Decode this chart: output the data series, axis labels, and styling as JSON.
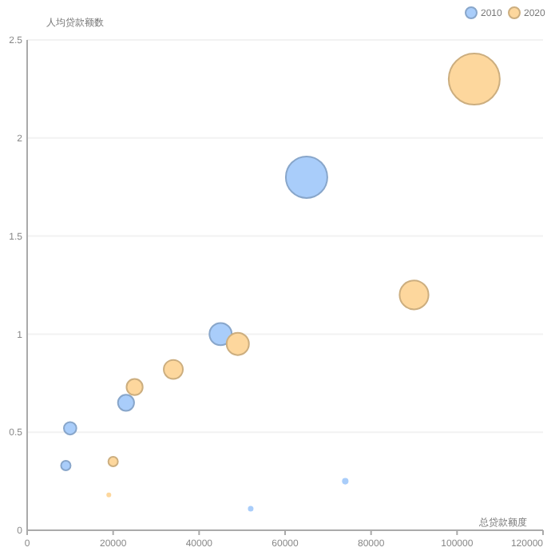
{
  "chart_data": {
    "type": "bubble",
    "xlabel": "总贷款额度",
    "ylabel": "人均贷款额数",
    "xlim": [
      0,
      120000
    ],
    "ylim": [
      0,
      2.5
    ],
    "xticks": [
      0,
      20000,
      40000,
      60000,
      80000,
      100000,
      120000
    ],
    "yticks": [
      0,
      0.5,
      1,
      1.5,
      2,
      2.5
    ],
    "grid": "y",
    "legend": "top right",
    "marker": "circle",
    "series": [
      {
        "name": "2010",
        "color": "#a9cdfa",
        "x": [
          9000,
          10000,
          23000,
          45000,
          65000,
          52000,
          74000
        ],
        "values": [
          0.33,
          0.52,
          0.65,
          1.0,
          1.8,
          0.11,
          0.25
        ],
        "sizes": [
          0.035,
          0.06,
          0.1,
          0.19,
          0.66,
          0.012,
          0.016
        ]
      },
      {
        "name": "2020",
        "color": "#fdd79d",
        "x": [
          19000,
          20000,
          25000,
          34000,
          49000,
          90000,
          104000
        ],
        "values": [
          0.18,
          0.35,
          0.73,
          0.82,
          0.95,
          1.2,
          2.3
        ],
        "sizes": [
          0.009,
          0.035,
          0.1,
          0.14,
          0.19,
          0.32,
          1
        ]
      }
    ]
  }
}
